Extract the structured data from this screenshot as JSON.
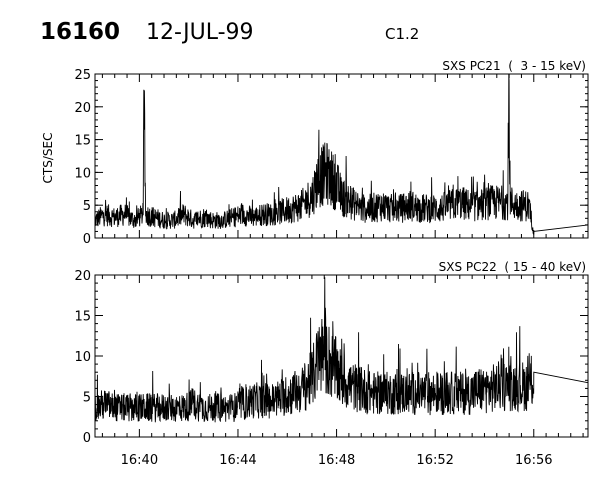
{
  "header": {
    "event_id": "16160",
    "date": "12-JUL-99",
    "goes_class": "C1.2"
  },
  "x_axis": {
    "range_minutes": [
      38.2,
      58.2
    ],
    "ticks": [
      {
        "value": 40,
        "label": "16:40"
      },
      {
        "value": 44,
        "label": "16:44"
      },
      {
        "value": 48,
        "label": "16:48"
      },
      {
        "value": 52,
        "label": "16:52"
      },
      {
        "value": 56,
        "label": "16:56"
      }
    ]
  },
  "chart_data": [
    {
      "type": "line",
      "title": "SXS PC21  (  3 - 15 keV)",
      "ylabel": "CTS/SEC",
      "xlabel": "",
      "ylim": [
        0,
        25
      ],
      "yticks": [
        0,
        5,
        10,
        15,
        20,
        25
      ],
      "grid": false,
      "series": [
        {
          "color": "#000000",
          "x": [
            38.2,
            38.6,
            39.0,
            39.4,
            39.8,
            40.15,
            40.2,
            40.25,
            40.6,
            41.0,
            41.4,
            41.8,
            42.2,
            42.6,
            43.0,
            43.4,
            43.8,
            44.2,
            44.6,
            45.0,
            45.4,
            45.8,
            46.2,
            46.6,
            46.8,
            47.0,
            47.2,
            47.4,
            47.6,
            47.8,
            48.0,
            48.2,
            48.6,
            49.0,
            49.4,
            49.8,
            50.2,
            50.6,
            51.0,
            51.4,
            51.8,
            52.2,
            52.6,
            53.0,
            53.4,
            53.8,
            54.2,
            54.6,
            54.95,
            55.0,
            55.05,
            55.4,
            55.8,
            56.0,
            58.2
          ],
          "y": [
            3,
            4,
            3.5,
            4,
            3,
            4,
            22.5,
            4,
            3.5,
            3,
            3,
            4,
            3,
            3.5,
            3,
            3,
            3.5,
            4,
            3.5,
            4,
            4,
            4.5,
            5,
            5.5,
            6.5,
            7,
            9.5,
            10.5,
            11,
            10,
            9,
            7,
            6,
            5,
            5,
            5.5,
            5,
            5,
            5.5,
            5,
            5,
            5,
            5.5,
            6,
            5.5,
            5.5,
            6,
            6,
            6,
            24,
            6,
            5.5,
            5.5,
            1,
            2
          ]
        }
      ]
    },
    {
      "type": "line",
      "title": "SXS PC22  ( 15 - 40 keV)",
      "ylabel": "",
      "xlabel": "",
      "ylim": [
        0,
        20
      ],
      "yticks": [
        0,
        5,
        10,
        15,
        20
      ],
      "grid": false,
      "series": [
        {
          "color": "#000000",
          "x": [
            38.2,
            38.6,
            39.0,
            39.4,
            39.8,
            40.2,
            40.6,
            41.0,
            41.4,
            41.8,
            42.2,
            42.6,
            43.0,
            43.4,
            43.8,
            44.2,
            44.6,
            45.0,
            45.4,
            45.8,
            46.2,
            46.6,
            47.0,
            47.2,
            47.4,
            47.6,
            47.8,
            48.0,
            48.2,
            48.6,
            49.0,
            49.4,
            49.8,
            50.2,
            50.6,
            51.0,
            51.4,
            51.8,
            52.2,
            52.6,
            53.0,
            53.4,
            53.8,
            54.2,
            54.6,
            55.0,
            55.4,
            55.8,
            56.0,
            58.2
          ],
          "y": [
            4,
            4.5,
            4,
            4,
            4,
            4,
            4,
            4,
            4,
            4,
            4.5,
            4,
            4,
            4,
            4,
            4.5,
            5,
            5,
            5,
            5.5,
            6,
            6.5,
            8,
            10,
            11.5,
            11,
            10,
            9,
            8,
            7,
            6.5,
            6,
            6,
            6,
            6,
            6,
            6,
            6,
            6,
            6,
            6,
            6,
            6.5,
            6.5,
            7,
            7,
            7,
            7,
            8,
            6.7
          ]
        }
      ]
    }
  ]
}
